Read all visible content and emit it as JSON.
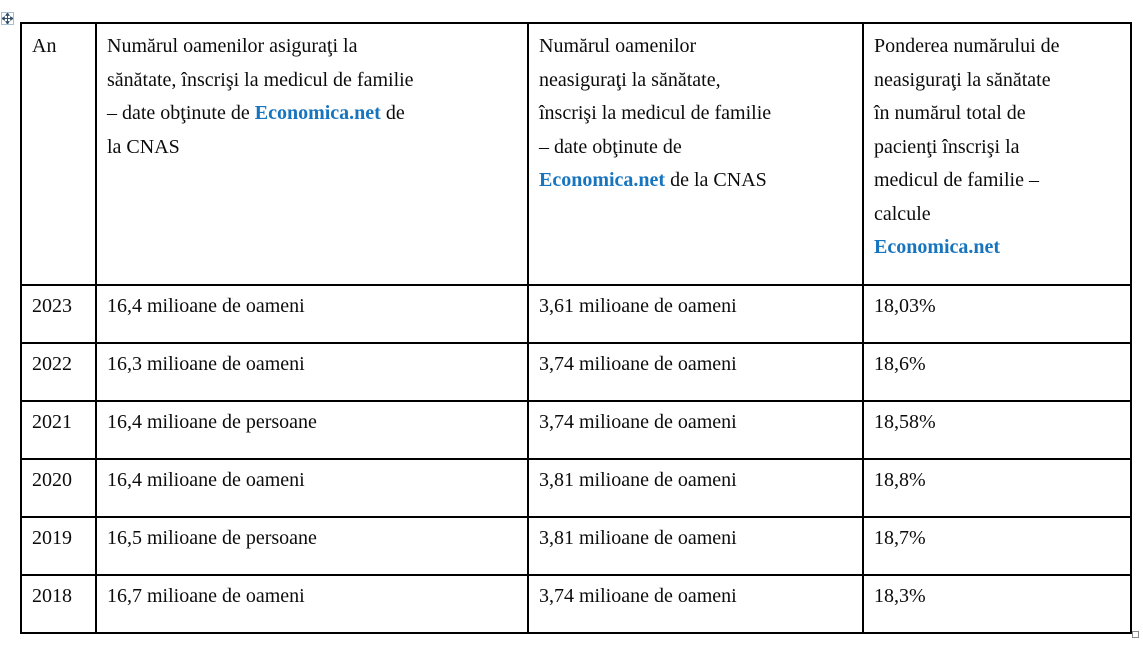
{
  "colors": {
    "brand_link": "#1774BE",
    "table_border": "#000000",
    "text": "#0C0C0C",
    "background": "#FFFFFF"
  },
  "icons": {
    "table_move_handle": "four-way-move-arrow",
    "table_resize_handle": "small-square"
  },
  "table": {
    "header": {
      "an": [
        {
          "text": "An"
        }
      ],
      "insured": [
        {
          "text": "Numărul oamenilor asiguraţi la"
        },
        {
          "br": true
        },
        {
          "text": "sănătate, înscrişi la medicul de familie"
        },
        {
          "br": true
        },
        {
          "text": "– date obţinute de "
        },
        {
          "text": "Economica.net",
          "brand": true
        },
        {
          "text": " de"
        },
        {
          "br": true
        },
        {
          "text": "la CNAS"
        }
      ],
      "uninsured": [
        {
          "text": "Numărul oamenilor"
        },
        {
          "br": true
        },
        {
          "text": "neasiguraţi la sănătate,"
        },
        {
          "br": true
        },
        {
          "text": "înscrişi la medicul de familie"
        },
        {
          "br": true
        },
        {
          "text": "– date obţinute de"
        },
        {
          "br": true
        },
        {
          "text": "Economica.net",
          "brand": true
        },
        {
          "text": " de la CNAS"
        }
      ],
      "share": [
        {
          "text": "Ponderea numărului de"
        },
        {
          "br": true
        },
        {
          "text": "neasiguraţi la sănătate"
        },
        {
          "br": true
        },
        {
          "text": "în numărul total de"
        },
        {
          "br": true
        },
        {
          "text": "pacienţi înscrişi la"
        },
        {
          "br": true
        },
        {
          "text": "medicul de familie –"
        },
        {
          "br": true
        },
        {
          "text": "calcule"
        },
        {
          "br": true
        },
        {
          "text": "Economica.net",
          "brand": true
        }
      ]
    },
    "rows": [
      {
        "year": "2023",
        "insured": "16,4 milioane de oameni",
        "uninsured": "3,61 milioane de oameni",
        "share": "18,03%"
      },
      {
        "year": "2022",
        "insured": "16,3 milioane de oameni",
        "uninsured": "3,74 milioane de oameni",
        "share": "18,6%"
      },
      {
        "year": "2021",
        "insured": "16,4 milioane de persoane",
        "uninsured": "3,74 milioane de oameni",
        "share": "18,58%"
      },
      {
        "year": "2020",
        "insured": "16,4 milioane de oameni",
        "uninsured": "3,81 milioane de oameni",
        "share": "18,8%"
      },
      {
        "year": "2019",
        "insured": "16,5 milioane de persoane",
        "uninsured": "3,81 milioane de oameni",
        "share": "18,7%"
      },
      {
        "year": "2018",
        "insured": "16,7 milioane de oameni",
        "uninsured": "3,74 milioane de oameni",
        "share": "18,3%"
      }
    ]
  }
}
